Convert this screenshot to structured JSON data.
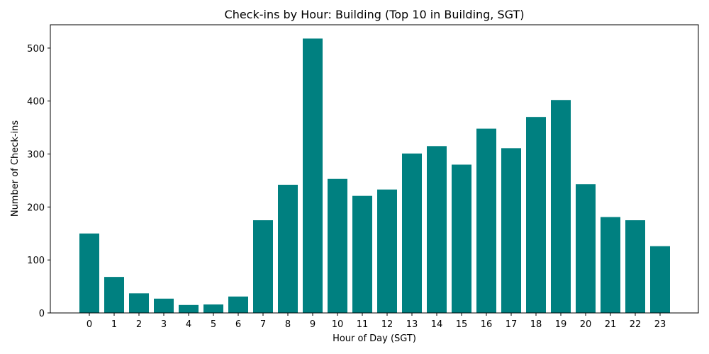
{
  "chart_data": {
    "type": "bar",
    "title": "Check-ins by Hour: Building (Top 10 in Building, SGT)",
    "xlabel": "Hour of Day (SGT)",
    "ylabel": "Number of Check-ins",
    "categories": [
      "0",
      "1",
      "2",
      "3",
      "4",
      "5",
      "6",
      "7",
      "8",
      "9",
      "10",
      "11",
      "12",
      "13",
      "14",
      "15",
      "16",
      "17",
      "18",
      "19",
      "20",
      "21",
      "22",
      "23"
    ],
    "values": [
      150,
      68,
      37,
      27,
      15,
      16,
      31,
      175,
      242,
      518,
      253,
      221,
      233,
      301,
      315,
      280,
      348,
      311,
      370,
      402,
      243,
      181,
      175,
      126
    ],
    "ylim": [
      0,
      544
    ],
    "yticks": [
      0,
      100,
      200,
      300,
      400,
      500
    ],
    "bar_color": "#008080",
    "grid": false,
    "legend": "none"
  }
}
